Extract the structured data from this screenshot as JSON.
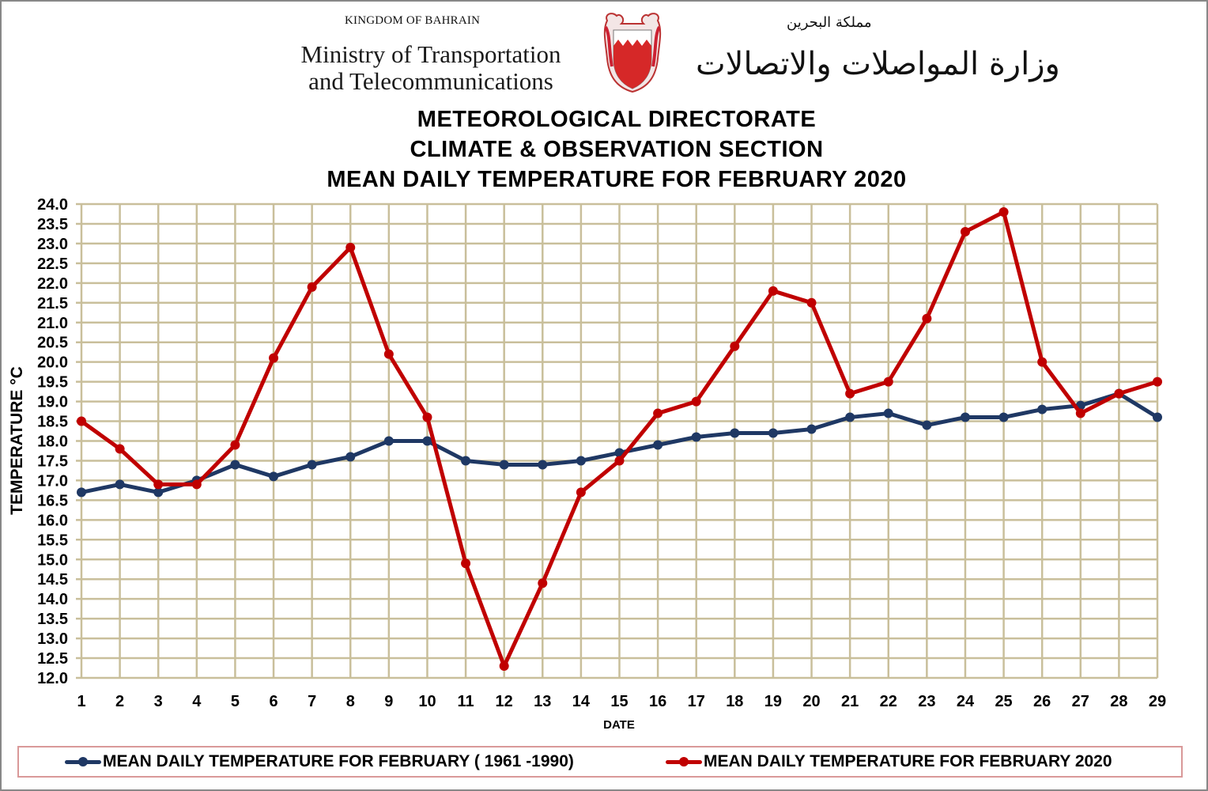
{
  "header": {
    "kingdom": "KINGDOM OF BAHRAIN",
    "ministry_line1": "Ministry of Transportation",
    "ministry_line2": "and Telecommunications",
    "arabic_kingdom": "مملكة البحرين",
    "arabic_ministry": "وزارة المواصلات والاتصالات",
    "emblem_icon": "bahrain-coat-of-arms-icon"
  },
  "chart_data": {
    "type": "line",
    "title": [
      "METEOROLOGICAL DIRECTORATE",
      "CLIMATE & OBSERVATION SECTION",
      "MEAN DAILY TEMPERATURE FOR FEBRUARY 2020"
    ],
    "xlabel": "DATE",
    "ylabel": "TEMPERATURE °C",
    "x": [
      1,
      2,
      3,
      4,
      5,
      6,
      7,
      8,
      9,
      10,
      11,
      12,
      13,
      14,
      15,
      16,
      17,
      18,
      19,
      20,
      21,
      22,
      23,
      24,
      25,
      26,
      27,
      28,
      29
    ],
    "ylim": [
      12.0,
      24.0
    ],
    "ystep": 0.5,
    "grid": true,
    "legend_position": "bottom",
    "series": [
      {
        "name": "MEAN DAILY TEMPERATURE FOR FEBRUARY ( 1961 -1990)",
        "color": "#1f3864",
        "values": [
          16.7,
          16.9,
          16.7,
          17.0,
          17.4,
          17.1,
          17.4,
          17.6,
          18.0,
          18.0,
          17.5,
          17.4,
          17.4,
          17.5,
          17.7,
          17.9,
          18.1,
          18.2,
          18.2,
          18.3,
          18.6,
          18.7,
          18.4,
          18.6,
          18.6,
          18.8,
          18.9,
          19.2,
          18.6
        ]
      },
      {
        "name": "MEAN DAILY TEMPERATURE FOR FEBRUARY 2020",
        "color": "#c00000",
        "values": [
          18.5,
          17.8,
          16.9,
          16.9,
          17.9,
          20.1,
          21.9,
          22.9,
          20.2,
          18.6,
          14.9,
          12.3,
          14.4,
          16.7,
          17.5,
          18.7,
          19.0,
          20.4,
          21.8,
          21.5,
          19.2,
          19.5,
          21.1,
          23.3,
          23.8,
          20.0,
          18.7,
          19.2,
          19.5
        ]
      }
    ]
  },
  "colors": {
    "grid": "#c9bf9b",
    "legend_border": "#d99999",
    "frame": "#888888"
  }
}
